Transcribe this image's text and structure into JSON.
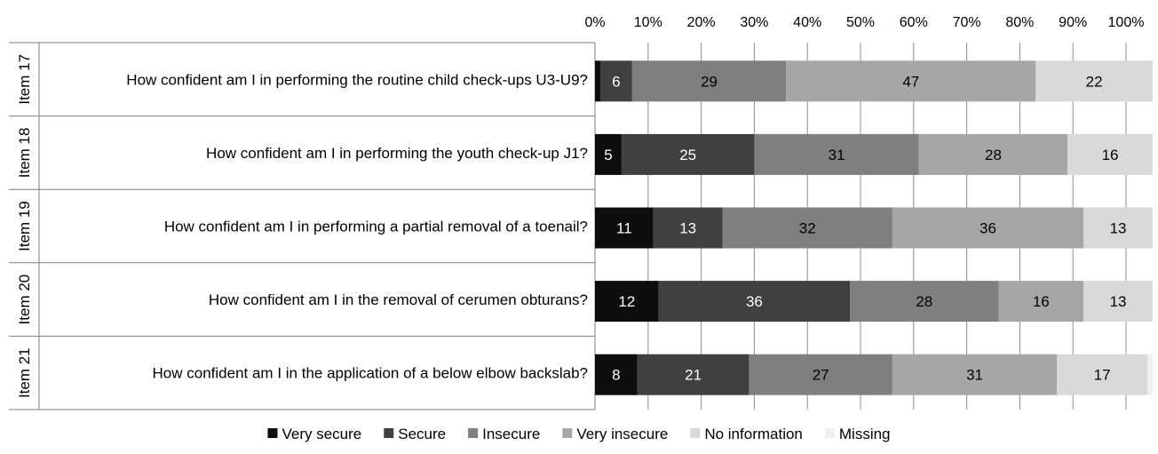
{
  "chart_data": {
    "type": "bar",
    "orientation": "horizontal",
    "stacked": true,
    "percent_stacked": true,
    "xlim": [
      0,
      100
    ],
    "x_ticks": [
      "0%",
      "10%",
      "20%",
      "30%",
      "40%",
      "50%",
      "60%",
      "70%",
      "80%",
      "90%",
      "100%"
    ],
    "x_axis_position": "top",
    "grid": true,
    "legend_position": "bottom",
    "categories": [
      {
        "group": "Item 17",
        "question": "How confident am I in performing the routine child check-ups U3-U9?"
      },
      {
        "group": "Item 18",
        "question": "How confident am I in performing the youth check-up J1?"
      },
      {
        "group": "Item 19",
        "question": "How confident am I in performing a partial removal of a toenail?"
      },
      {
        "group": "Item 20",
        "question": "How confident am I in the removal of cerumen obturans?"
      },
      {
        "group": "Item 21",
        "question": "How confident am I in the application of a  below elbow backslab?"
      }
    ],
    "series": [
      {
        "name": "Very secure",
        "color": "#0d0d0d",
        "values": [
          1,
          5,
          11,
          12,
          8
        ],
        "labels": [
          "",
          "5",
          "11",
          "12",
          "8"
        ]
      },
      {
        "name": "Secure",
        "color": "#404040",
        "values": [
          6,
          25,
          13,
          36,
          21
        ],
        "labels": [
          "6",
          "25",
          "13",
          "36",
          "21"
        ]
      },
      {
        "name": "Insecure",
        "color": "#7f7f7f",
        "values": [
          29,
          31,
          32,
          28,
          27
        ],
        "labels": [
          "29",
          "31",
          "32",
          "28",
          "27"
        ]
      },
      {
        "name": "Very insecure",
        "color": "#a6a6a6",
        "values": [
          47,
          28,
          36,
          16,
          31
        ],
        "labels": [
          "47",
          "28",
          "36",
          "16",
          "31"
        ]
      },
      {
        "name": "No information",
        "color": "#d9d9d9",
        "values": [
          22,
          16,
          13,
          13,
          17
        ],
        "labels": [
          "22",
          "16",
          "13",
          "13",
          "17"
        ]
      },
      {
        "name": "Missing",
        "color": "#efefef",
        "values": [
          0,
          0,
          0,
          0,
          1
        ],
        "labels": [
          "",
          "",
          "",
          "",
          ""
        ]
      }
    ]
  }
}
